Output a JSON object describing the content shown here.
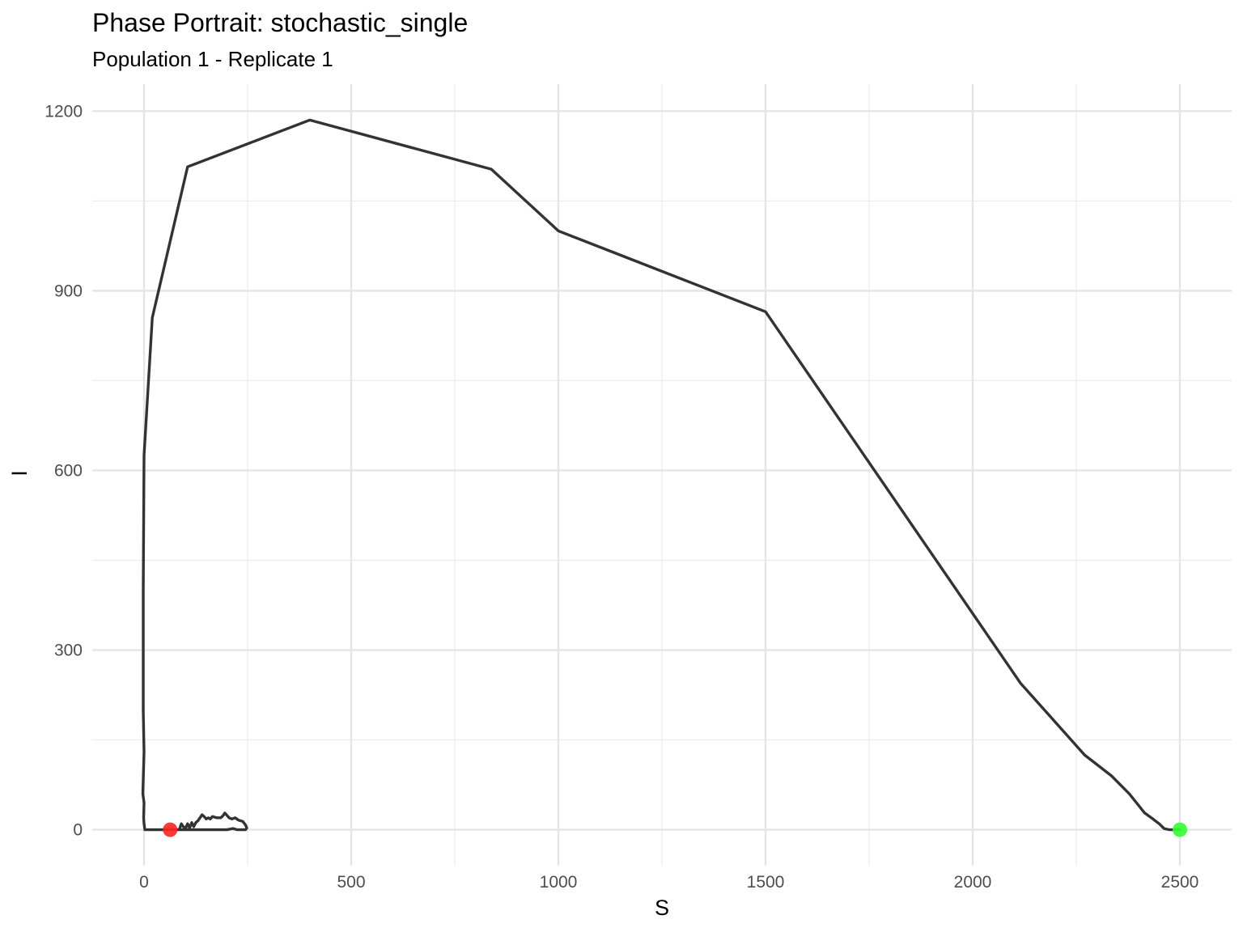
{
  "chart_data": {
    "type": "line",
    "title": "Phase Portrait: stochastic_single",
    "subtitle": "Population 1 - Replicate 1",
    "xlabel": "S",
    "ylabel": "I",
    "xlim": [
      -125,
      2625
    ],
    "ylim": [
      -60,
      1245
    ],
    "x_ticks": [
      0,
      500,
      1000,
      1500,
      2000,
      2500
    ],
    "y_ticks": [
      0,
      300,
      600,
      900,
      1200
    ],
    "x_ticks_minor": [
      250,
      750,
      1250,
      1750,
      2250
    ],
    "y_ticks_minor": [
      150,
      450,
      750,
      1050
    ],
    "grid": true,
    "line_color": "#333333",
    "series": [
      {
        "points": [
          [
            2500,
            0
          ],
          [
            2492,
            0
          ],
          [
            2475,
            0
          ],
          [
            2462,
            2
          ],
          [
            2450,
            10
          ],
          [
            2435,
            18
          ],
          [
            2415,
            28
          ],
          [
            2378,
            60
          ],
          [
            2335,
            90
          ],
          [
            2270,
            125
          ],
          [
            2115,
            245
          ],
          [
            1500,
            865
          ],
          [
            1000,
            1000
          ],
          [
            838,
            1103
          ],
          [
            400,
            1185
          ],
          [
            105,
            1107
          ],
          [
            20,
            855
          ],
          [
            0,
            625
          ],
          [
            -2,
            400
          ],
          [
            -2,
            200
          ],
          [
            0,
            130
          ],
          [
            -3,
            60
          ],
          [
            0,
            45
          ],
          [
            -1,
            20
          ],
          [
            0,
            10
          ],
          [
            2,
            0
          ],
          [
            30,
            0
          ],
          [
            60,
            0
          ],
          [
            85,
            0
          ],
          [
            90,
            10
          ],
          [
            95,
            5
          ],
          [
            100,
            2
          ],
          [
            105,
            10
          ],
          [
            110,
            3
          ],
          [
            115,
            12
          ],
          [
            120,
            5
          ],
          [
            125,
            12
          ],
          [
            130,
            15
          ],
          [
            135,
            20
          ],
          [
            140,
            25
          ],
          [
            145,
            22
          ],
          [
            150,
            18
          ],
          [
            155,
            20
          ],
          [
            160,
            18
          ],
          [
            165,
            22
          ],
          [
            175,
            20
          ],
          [
            185,
            20
          ],
          [
            190,
            23
          ],
          [
            195,
            28
          ],
          [
            200,
            24
          ],
          [
            205,
            20
          ],
          [
            212,
            18
          ],
          [
            220,
            20
          ],
          [
            228,
            16
          ],
          [
            238,
            14
          ],
          [
            245,
            8
          ],
          [
            248,
            3
          ],
          [
            245,
            0
          ],
          [
            235,
            0
          ],
          [
            225,
            0
          ],
          [
            215,
            2
          ],
          [
            200,
            0
          ],
          [
            180,
            0
          ],
          [
            160,
            0
          ],
          [
            140,
            0
          ],
          [
            120,
            0
          ],
          [
            105,
            0
          ],
          [
            100,
            0
          ],
          [
            95,
            0
          ],
          [
            90,
            0
          ],
          [
            85,
            0
          ],
          [
            75,
            0
          ],
          [
            63,
            0
          ]
        ]
      }
    ],
    "start_point": {
      "S": 2500,
      "I": 0,
      "color": "#33ff33"
    },
    "end_point": {
      "S": 63,
      "I": 0,
      "color": "#ff2222"
    }
  }
}
